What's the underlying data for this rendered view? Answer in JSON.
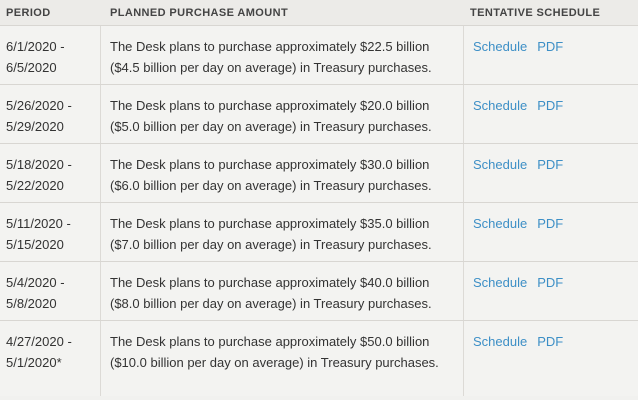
{
  "header": {
    "period": "PERIOD",
    "amount": "PLANNED PURCHASE AMOUNT",
    "schedule": "TENTATIVE SCHEDULE"
  },
  "rows": [
    {
      "period_start": "6/1/2020 -",
      "period_end": "6/5/2020",
      "description": "The Desk plans to purchase approximately $22.5 billion ($4.5 billion per day on average) in Treasury purchases.",
      "schedule_link": "Schedule",
      "pdf_link": "PDF"
    },
    {
      "period_start": "5/26/2020 -",
      "period_end": "5/29/2020",
      "description": "The Desk plans to purchase approximately $20.0 billion ($5.0 billion per day on average) in Treasury purchases.",
      "schedule_link": "Schedule",
      "pdf_link": "PDF"
    },
    {
      "period_start": "5/18/2020 -",
      "period_end": "5/22/2020",
      "description": "The Desk plans to purchase approximately $30.0 billion ($6.0 billion per day on average) in Treasury purchases.",
      "schedule_link": "Schedule",
      "pdf_link": "PDF"
    },
    {
      "period_start": "5/11/2020 -",
      "period_end": "5/15/2020",
      "description": "The Desk plans to purchase approximately $35.0 billion ($7.0 billion per day on average) in Treasury purchases.",
      "schedule_link": "Schedule",
      "pdf_link": "PDF"
    },
    {
      "period_start": "5/4/2020 -",
      "period_end": "5/8/2020",
      "description": "The Desk plans to purchase approximately $40.0 billion ($8.0 billion per day on average) in Treasury purchases.",
      "schedule_link": "Schedule",
      "pdf_link": "PDF"
    },
    {
      "period_start": "4/27/2020 -",
      "period_end": "5/1/2020*",
      "description": "The Desk plans to purchase approximately $50.0 billion ($10.0 billion per day on average) in Treasury purchases.",
      "schedule_link": "Schedule",
      "pdf_link": "PDF"
    }
  ],
  "colors": {
    "link": "#3d8fc6",
    "header_bg": "#ecebe8",
    "row_bg": "#f3f3f1",
    "border": "#d8d6d2"
  }
}
